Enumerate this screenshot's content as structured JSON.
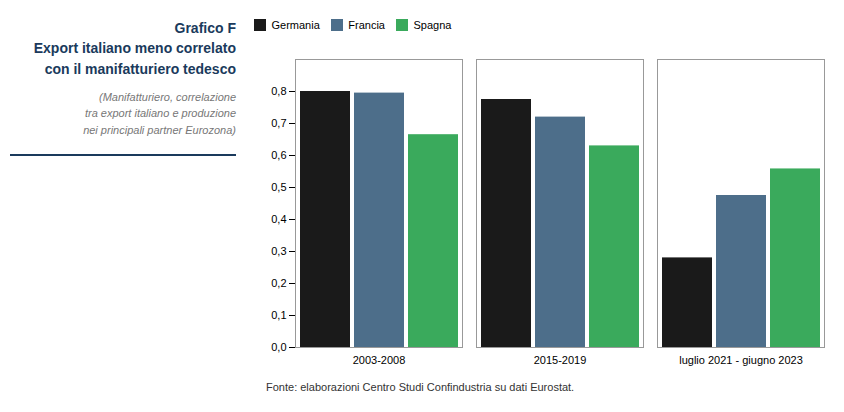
{
  "chart_data": {
    "type": "bar",
    "title": "Grafico F\nExport italiano meno correlato\ncon il manifatturiero tedesco",
    "subtitle": "(Manifatturiero, correlazione\ntra export italiano e produzione\nnei principali partner Eurozona)",
    "annotations": [
      "Fonte: elaborazioni Centro Studi Confindustria su dati Eurostat."
    ],
    "categories": [
      "2003-2008",
      "2015-2019",
      "luglio 2021 - giugno 2023"
    ],
    "series": [
      {
        "name": "Germania",
        "color": "#1a1a1a",
        "values": [
          0.8,
          0.775,
          0.28
        ]
      },
      {
        "name": "Francia",
        "color": "#4d6e8a",
        "values": [
          0.795,
          0.72,
          0.475
        ]
      },
      {
        "name": "Spagna",
        "color": "#3aaa5c",
        "values": [
          0.665,
          0.63,
          0.558
        ]
      }
    ],
    "ylim": [
      0.0,
      0.9
    ],
    "yticks": [
      {
        "value": 0.0,
        "label": "0,0"
      },
      {
        "value": 0.1,
        "label": "0,1"
      },
      {
        "value": 0.2,
        "label": "0,2"
      },
      {
        "value": 0.3,
        "label": "0,3"
      },
      {
        "value": 0.4,
        "label": "0,4"
      },
      {
        "value": 0.5,
        "label": "0,5"
      },
      {
        "value": 0.6,
        "label": "0,6"
      },
      {
        "value": 0.7,
        "label": "0,7"
      },
      {
        "value": 0.8,
        "label": "0,8"
      }
    ],
    "grid": false,
    "legend": "top-left"
  }
}
